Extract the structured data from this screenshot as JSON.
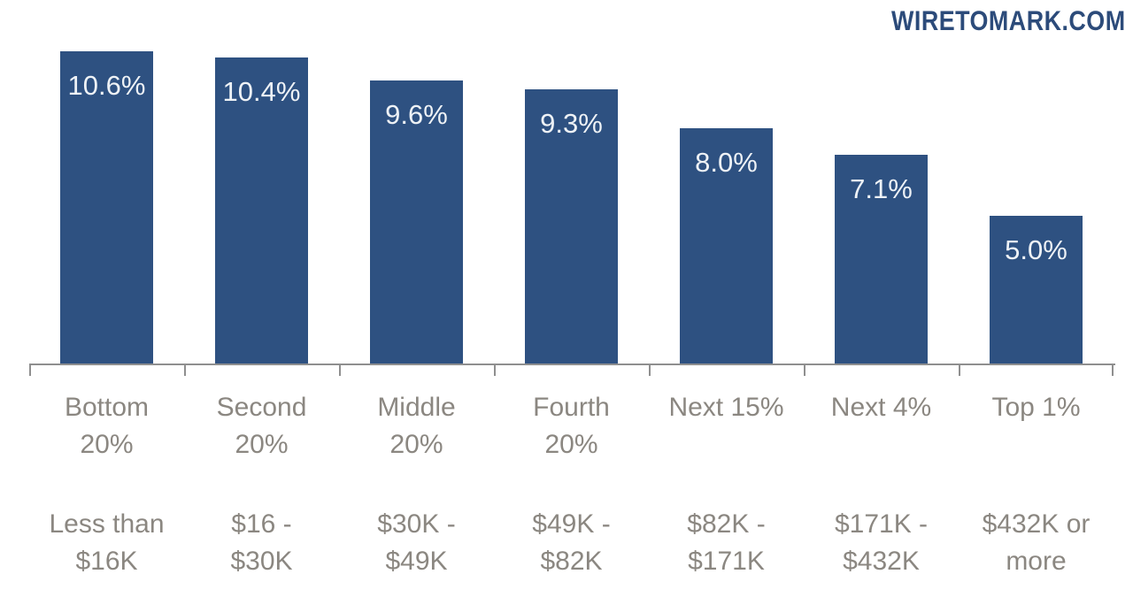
{
  "watermark": {
    "text": "WIRETOMARK.COM",
    "color": "#2c4b7a"
  },
  "chart_data": {
    "type": "bar",
    "title": "",
    "xlabel": "",
    "ylabel": "",
    "categories": [
      "Bottom 20%",
      "Second 20%",
      "Middle 20%",
      "Fourth 20%",
      "Next 15%",
      "Next 4%",
      "Top 1%"
    ],
    "category_label_lines": [
      [
        "Bottom",
        "20%"
      ],
      [
        "Second",
        "20%"
      ],
      [
        "Middle",
        "20%"
      ],
      [
        "Fourth",
        "20%"
      ],
      [
        "Next 15%"
      ],
      [
        "Next 4%"
      ],
      [
        "Top 1%"
      ]
    ],
    "income_range_lines": [
      [
        "Less than",
        "$16K"
      ],
      [
        "$16 -",
        "$30K"
      ],
      [
        "$30K -",
        "$49K"
      ],
      [
        "$49K -",
        "$82K"
      ],
      [
        "$82K -",
        "$171K"
      ],
      [
        "$171K -",
        "$432K"
      ],
      [
        "$432K or",
        "more"
      ]
    ],
    "values": [
      10.6,
      10.4,
      9.6,
      9.3,
      8.0,
      7.1,
      5.0
    ],
    "value_labels": [
      "10.6%",
      "10.4%",
      "9.6%",
      "9.3%",
      "8.0%",
      "7.1%",
      "5.0%"
    ],
    "ylim": [
      0,
      12.3
    ],
    "grid": false,
    "legend": null,
    "bar_color": "#2e5181",
    "value_label_color": "#eef2f6",
    "axis_color": "#8f8f8f",
    "category_label_color": "#8b8781",
    "income_label_color": "#8b8781"
  }
}
